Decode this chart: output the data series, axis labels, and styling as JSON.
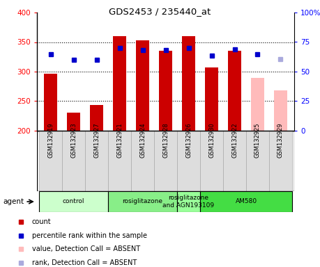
{
  "title": "GDS2453 / 235440_at",
  "samples": [
    "GSM132919",
    "GSM132923",
    "GSM132927",
    "GSM132921",
    "GSM132924",
    "GSM132928",
    "GSM132926",
    "GSM132930",
    "GSM132922",
    "GSM132925",
    "GSM132929"
  ],
  "counts": [
    296,
    230,
    244,
    360,
    353,
    335,
    360,
    307,
    335,
    289,
    268
  ],
  "ranks": [
    330,
    320,
    320,
    340,
    336,
    336,
    340,
    327,
    338,
    330,
    321
  ],
  "absent": [
    false,
    false,
    false,
    false,
    false,
    false,
    false,
    false,
    false,
    true,
    true
  ],
  "rank_absent": [
    false,
    false,
    false,
    false,
    false,
    false,
    false,
    false,
    false,
    false,
    true
  ],
  "bar_color_present": "#cc0000",
  "bar_color_absent": "#ffbbbb",
  "dot_color_present": "#0000cc",
  "dot_color_absent": "#aaaadd",
  "ylim_left": [
    200,
    400
  ],
  "ylim_right": [
    0,
    100
  ],
  "yticks_left": [
    200,
    250,
    300,
    350,
    400
  ],
  "yticks_right": [
    0,
    25,
    50,
    75,
    100
  ],
  "groups": [
    {
      "label": "control",
      "start": 0,
      "end": 3,
      "color": "#ccffcc"
    },
    {
      "label": "rosiglitazone",
      "start": 3,
      "end": 6,
      "color": "#88ee88"
    },
    {
      "label": "rosiglitazone\nand AGN193109",
      "start": 6,
      "end": 7,
      "color": "#99ff99"
    },
    {
      "label": "AM580",
      "start": 7,
      "end": 11,
      "color": "#44dd44"
    }
  ],
  "agent_label": "agent",
  "legend": [
    {
      "label": "count",
      "color": "#cc0000"
    },
    {
      "label": "percentile rank within the sample",
      "color": "#0000cc"
    },
    {
      "label": "value, Detection Call = ABSENT",
      "color": "#ffbbbb"
    },
    {
      "label": "rank, Detection Call = ABSENT",
      "color": "#aaaadd"
    }
  ]
}
